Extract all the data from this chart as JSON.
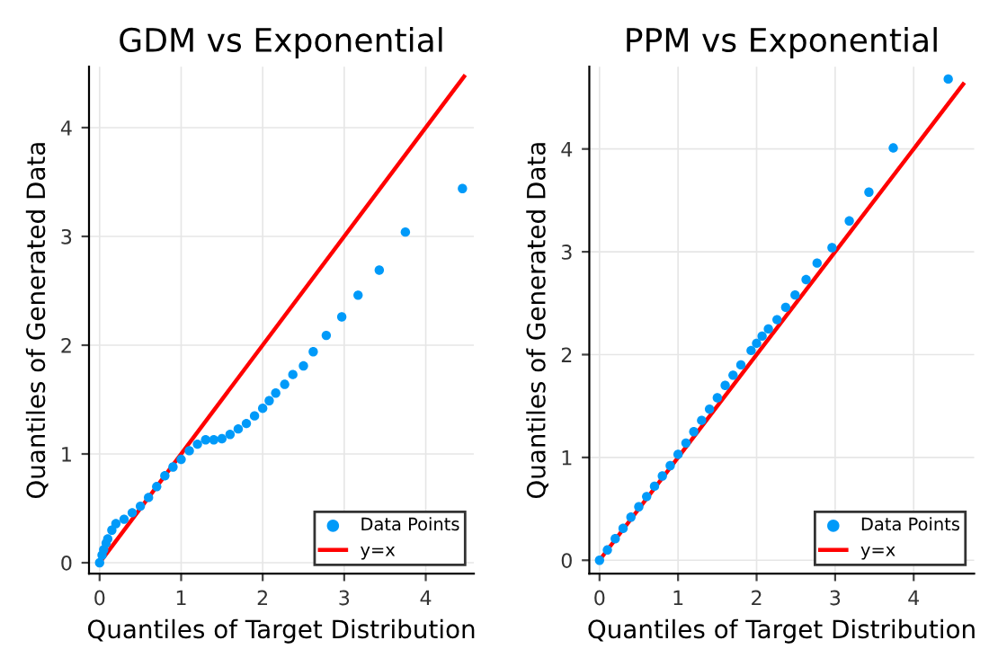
{
  "chart_data": [
    {
      "type": "scatter",
      "title": "GDM vs Exponential",
      "xlabel": "Quantiles of Target Distribution",
      "ylabel": "Quantiles of Generated Data",
      "xlim": [
        -0.13,
        4.59
      ],
      "ylim": [
        -0.1,
        4.56
      ],
      "xticks": [
        0,
        1,
        2,
        3,
        4
      ],
      "yticks": [
        0,
        1,
        2,
        3,
        4
      ],
      "grid": true,
      "legend": "bottom right",
      "series": [
        {
          "name": "Data Points",
          "marker": "circle",
          "color": "#009af9",
          "x": [
            0,
            0.03,
            0.05,
            0.08,
            0.1,
            0.15,
            0.2,
            0.3,
            0.4,
            0.5,
            0.6,
            0.7,
            0.8,
            0.9,
            1.0,
            1.1,
            1.2,
            1.3,
            1.4,
            1.5,
            1.6,
            1.7,
            1.8,
            1.9,
            2.0,
            2.08,
            2.16,
            2.27,
            2.37,
            2.5,
            2.62,
            2.78,
            2.97,
            3.17,
            3.43,
            3.75,
            4.45
          ],
          "values": [
            0,
            0.07,
            0.12,
            0.18,
            0.22,
            0.3,
            0.36,
            0.4,
            0.46,
            0.52,
            0.6,
            0.7,
            0.8,
            0.88,
            0.95,
            1.03,
            1.09,
            1.13,
            1.13,
            1.14,
            1.18,
            1.23,
            1.28,
            1.35,
            1.42,
            1.49,
            1.56,
            1.64,
            1.73,
            1.81,
            1.94,
            2.09,
            2.26,
            2.46,
            2.69,
            3.04,
            3.44
          ]
        },
        {
          "name": "y=x",
          "type": "line",
          "marker": "none",
          "color": "#ff0000",
          "x": [
            0,
            4.47
          ],
          "values": [
            0,
            4.47
          ]
        }
      ]
    },
    {
      "type": "scatter",
      "title": "PPM vs Exponential",
      "xlabel": "Quantiles of Target Distribution",
      "ylabel": "Quantiles of Generated Data",
      "xlim": [
        -0.13,
        4.77
      ],
      "ylim": [
        -0.13,
        4.8
      ],
      "xticks": [
        0,
        1,
        2,
        3,
        4
      ],
      "yticks": [
        0,
        1,
        2,
        3,
        4
      ],
      "grid": true,
      "legend": "bottom right",
      "series": [
        {
          "name": "Data Points",
          "marker": "circle",
          "color": "#009af9",
          "x": [
            0,
            0.1,
            0.2,
            0.3,
            0.4,
            0.5,
            0.6,
            0.7,
            0.8,
            0.9,
            1.0,
            1.1,
            1.2,
            1.3,
            1.4,
            1.5,
            1.6,
            1.7,
            1.8,
            1.93,
            2.0,
            2.07,
            2.15,
            2.26,
            2.37,
            2.49,
            2.63,
            2.77,
            2.96,
            3.18,
            3.43,
            3.74,
            4.44
          ],
          "values": [
            0,
            0.1,
            0.21,
            0.31,
            0.42,
            0.52,
            0.62,
            0.72,
            0.82,
            0.92,
            1.03,
            1.14,
            1.25,
            1.36,
            1.47,
            1.58,
            1.7,
            1.8,
            1.9,
            2.04,
            2.11,
            2.18,
            2.25,
            2.34,
            2.46,
            2.58,
            2.73,
            2.89,
            3.04,
            3.3,
            3.58,
            4.01,
            4.68
          ]
        },
        {
          "name": "y=x",
          "type": "line",
          "marker": "none",
          "color": "#ff0000",
          "x": [
            0,
            4.63
          ],
          "values": [
            0,
            4.63
          ]
        }
      ]
    }
  ]
}
